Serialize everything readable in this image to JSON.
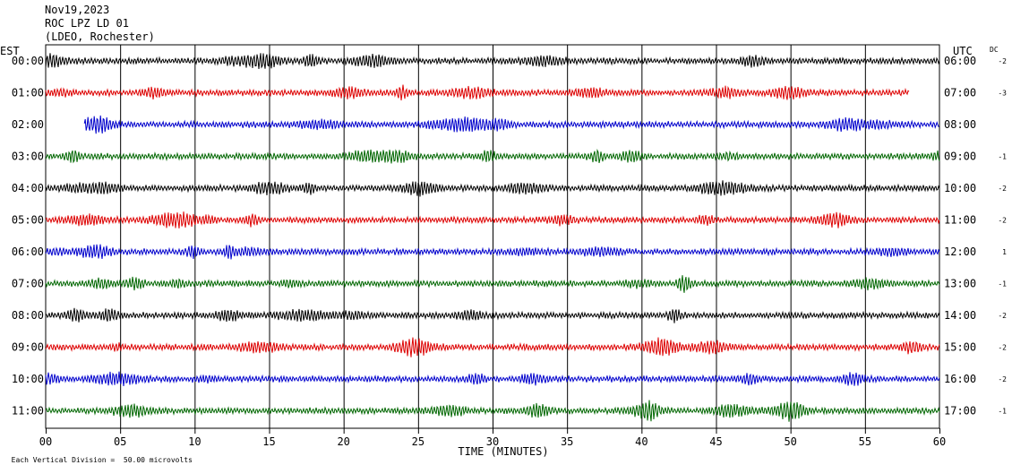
{
  "header": {
    "date": "Nov19,2023",
    "station": "ROC LPZ LD 01",
    "location": "(LDEO, Rochester)"
  },
  "labels": {
    "left_zone": "EST",
    "right_zone": "UTC",
    "dc": "DC"
  },
  "footnote": {
    "prefix": "Each Vertical Division =",
    "value": "50.00 microvolts"
  },
  "chart_data": {
    "type": "line",
    "title": "",
    "xlabel": "TIME (MINUTES)",
    "ylabel": "",
    "xlim": [
      0,
      60
    ],
    "x_ticks": [
      "00",
      "05",
      "10",
      "15",
      "20",
      "25",
      "30",
      "35",
      "40",
      "45",
      "50",
      "55",
      "60"
    ],
    "grid": true,
    "trace_colors": [
      "#000000",
      "#dd0000",
      "#0000cc",
      "#006600"
    ],
    "rows": [
      {
        "est": "00:00",
        "utc": "06:00",
        "dc": "-2",
        "start_min": 0,
        "end_min": 60
      },
      {
        "est": "01:00",
        "utc": "07:00",
        "dc": "-3",
        "start_min": 0,
        "end_min": 58
      },
      {
        "est": "02:00",
        "utc": "08:00",
        "dc": "",
        "start_min": 2.6,
        "end_min": 60
      },
      {
        "est": "03:00",
        "utc": "09:00",
        "dc": "-1",
        "start_min": 0,
        "end_min": 60
      },
      {
        "est": "04:00",
        "utc": "10:00",
        "dc": "-2",
        "start_min": 0,
        "end_min": 60
      },
      {
        "est": "05:00",
        "utc": "11:00",
        "dc": "-2",
        "start_min": 0,
        "end_min": 60
      },
      {
        "est": "06:00",
        "utc": "12:00",
        "dc": "1",
        "start_min": 0,
        "end_min": 60
      },
      {
        "est": "07:00",
        "utc": "13:00",
        "dc": "-1",
        "start_min": 0,
        "end_min": 60
      },
      {
        "est": "08:00",
        "utc": "14:00",
        "dc": "-2",
        "start_min": 0,
        "end_min": 60
      },
      {
        "est": "09:00",
        "utc": "15:00",
        "dc": "-2",
        "start_min": 0,
        "end_min": 60
      },
      {
        "est": "10:00",
        "utc": "16:00",
        "dc": "-2",
        "start_min": 0,
        "end_min": 60
      },
      {
        "est": "11:00",
        "utc": "17:00",
        "dc": "-1",
        "start_min": 0,
        "end_min": 60
      }
    ]
  }
}
